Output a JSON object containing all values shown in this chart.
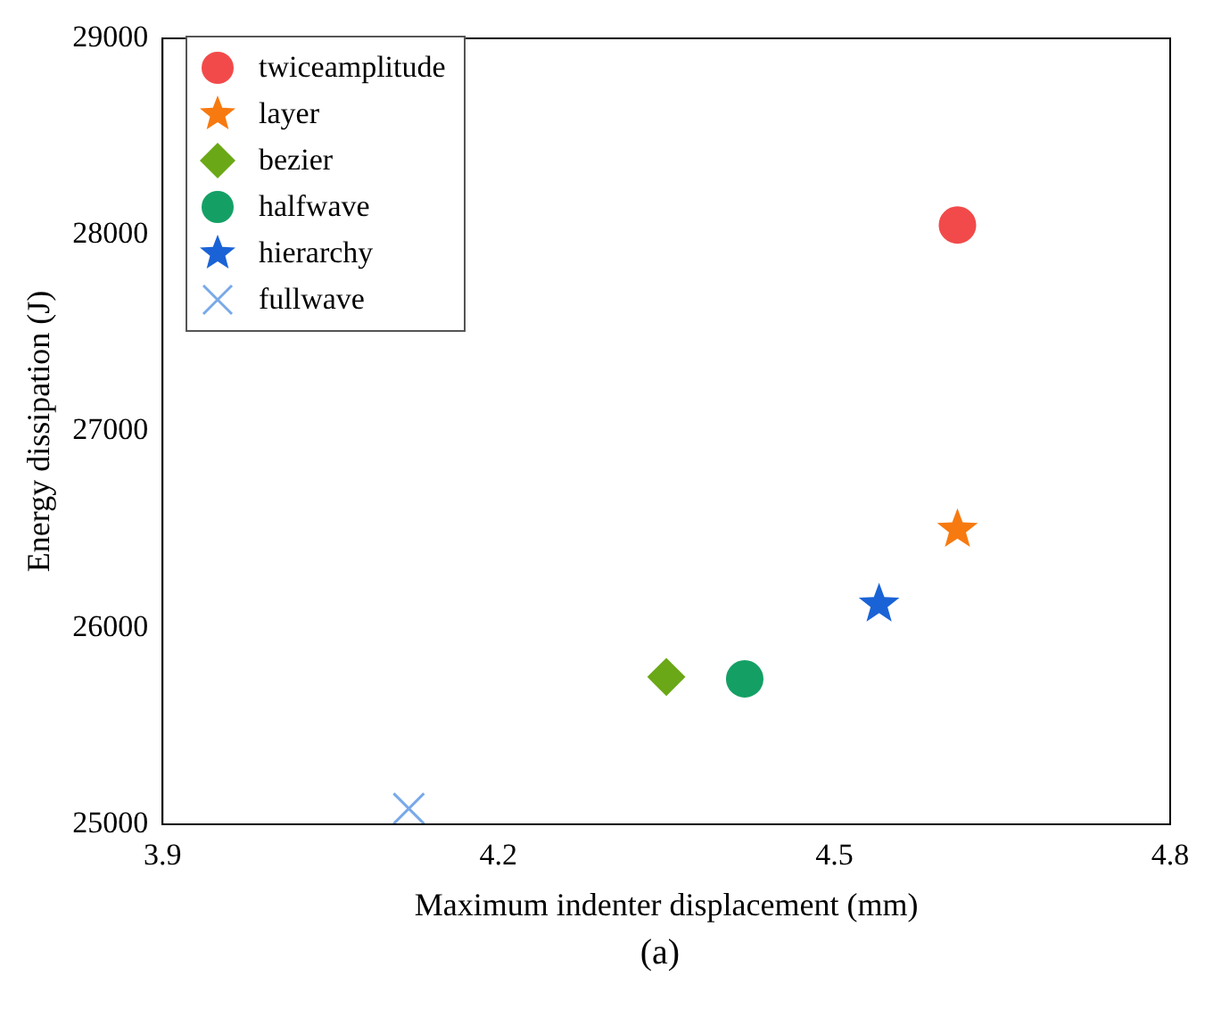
{
  "chart_data": {
    "type": "scatter",
    "xlabel": "Maximum indenter displacement (mm)",
    "ylabel": "Energy dissipation (J)",
    "xlim": [
      3.9,
      4.8
    ],
    "xticks": [
      3.9,
      4.2,
      4.5,
      4.8
    ],
    "ylim": [
      25000,
      29000
    ],
    "yticks": [
      25000,
      26000,
      27000,
      28000,
      29000
    ],
    "grid": false,
    "legend": "top left",
    "annotations": [
      "(a)"
    ],
    "series": [
      {
        "name": "twiceamplitude",
        "color": "#f24a4a",
        "marker": "circle",
        "x": [
          4.61
        ],
        "values": [
          28050
        ]
      },
      {
        "name": "layer",
        "color": "#f77a10",
        "marker": "star",
        "x": [
          4.61
        ],
        "values": [
          26500
        ]
      },
      {
        "name": "bezier",
        "color": "#6aa817",
        "marker": "diamond",
        "x": [
          4.35
        ],
        "values": [
          25750
        ]
      },
      {
        "name": "halfwave",
        "color": "#14a065",
        "marker": "circle",
        "x": [
          4.42
        ],
        "values": [
          25740
        ]
      },
      {
        "name": "hierarchy",
        "color": "#1a63d6",
        "marker": "star",
        "x": [
          4.54
        ],
        "values": [
          26120
        ]
      },
      {
        "name": "fullwave",
        "color": "#79a9e8",
        "marker": "cross",
        "x": [
          4.12
        ],
        "values": [
          25080
        ]
      }
    ]
  }
}
